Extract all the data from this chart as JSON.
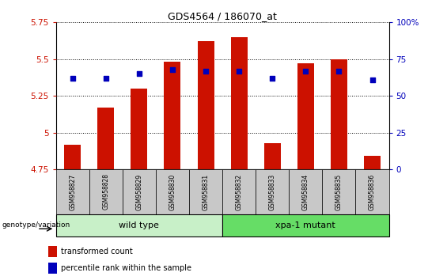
{
  "title": "GDS4564 / 186070_at",
  "samples": [
    "GSM958827",
    "GSM958828",
    "GSM958829",
    "GSM958830",
    "GSM958831",
    "GSM958832",
    "GSM958833",
    "GSM958834",
    "GSM958835",
    "GSM958836"
  ],
  "transformed_count": [
    4.92,
    5.17,
    5.3,
    5.48,
    5.62,
    5.65,
    4.93,
    5.47,
    5.5,
    4.84
  ],
  "percentile_rank": [
    62,
    62,
    65,
    68,
    67,
    67,
    62,
    67,
    67,
    61
  ],
  "ylim_left": [
    4.75,
    5.75
  ],
  "ylim_right": [
    0,
    100
  ],
  "yticks_left": [
    4.75,
    5.0,
    5.25,
    5.5,
    5.75
  ],
  "yticks_right": [
    0,
    25,
    50,
    75,
    100
  ],
  "groups": [
    {
      "label": "wild type",
      "samples_range": [
        0,
        4
      ],
      "color": "#c8f0c8"
    },
    {
      "label": "xpa-1 mutant",
      "samples_range": [
        5,
        9
      ],
      "color": "#66dd66"
    }
  ],
  "bar_color": "#cc1100",
  "dot_color": "#0000bb",
  "bar_width": 0.5,
  "tick_color_left": "#cc1100",
  "tick_color_right": "#0000bb",
  "legend_bar_label": "transformed count",
  "legend_dot_label": "percentile rank within the sample",
  "genotype_label": "genotype/variation",
  "tick_bg": "#c8c8c8",
  "group_border_color": "#000000",
  "title_fontsize": 9
}
